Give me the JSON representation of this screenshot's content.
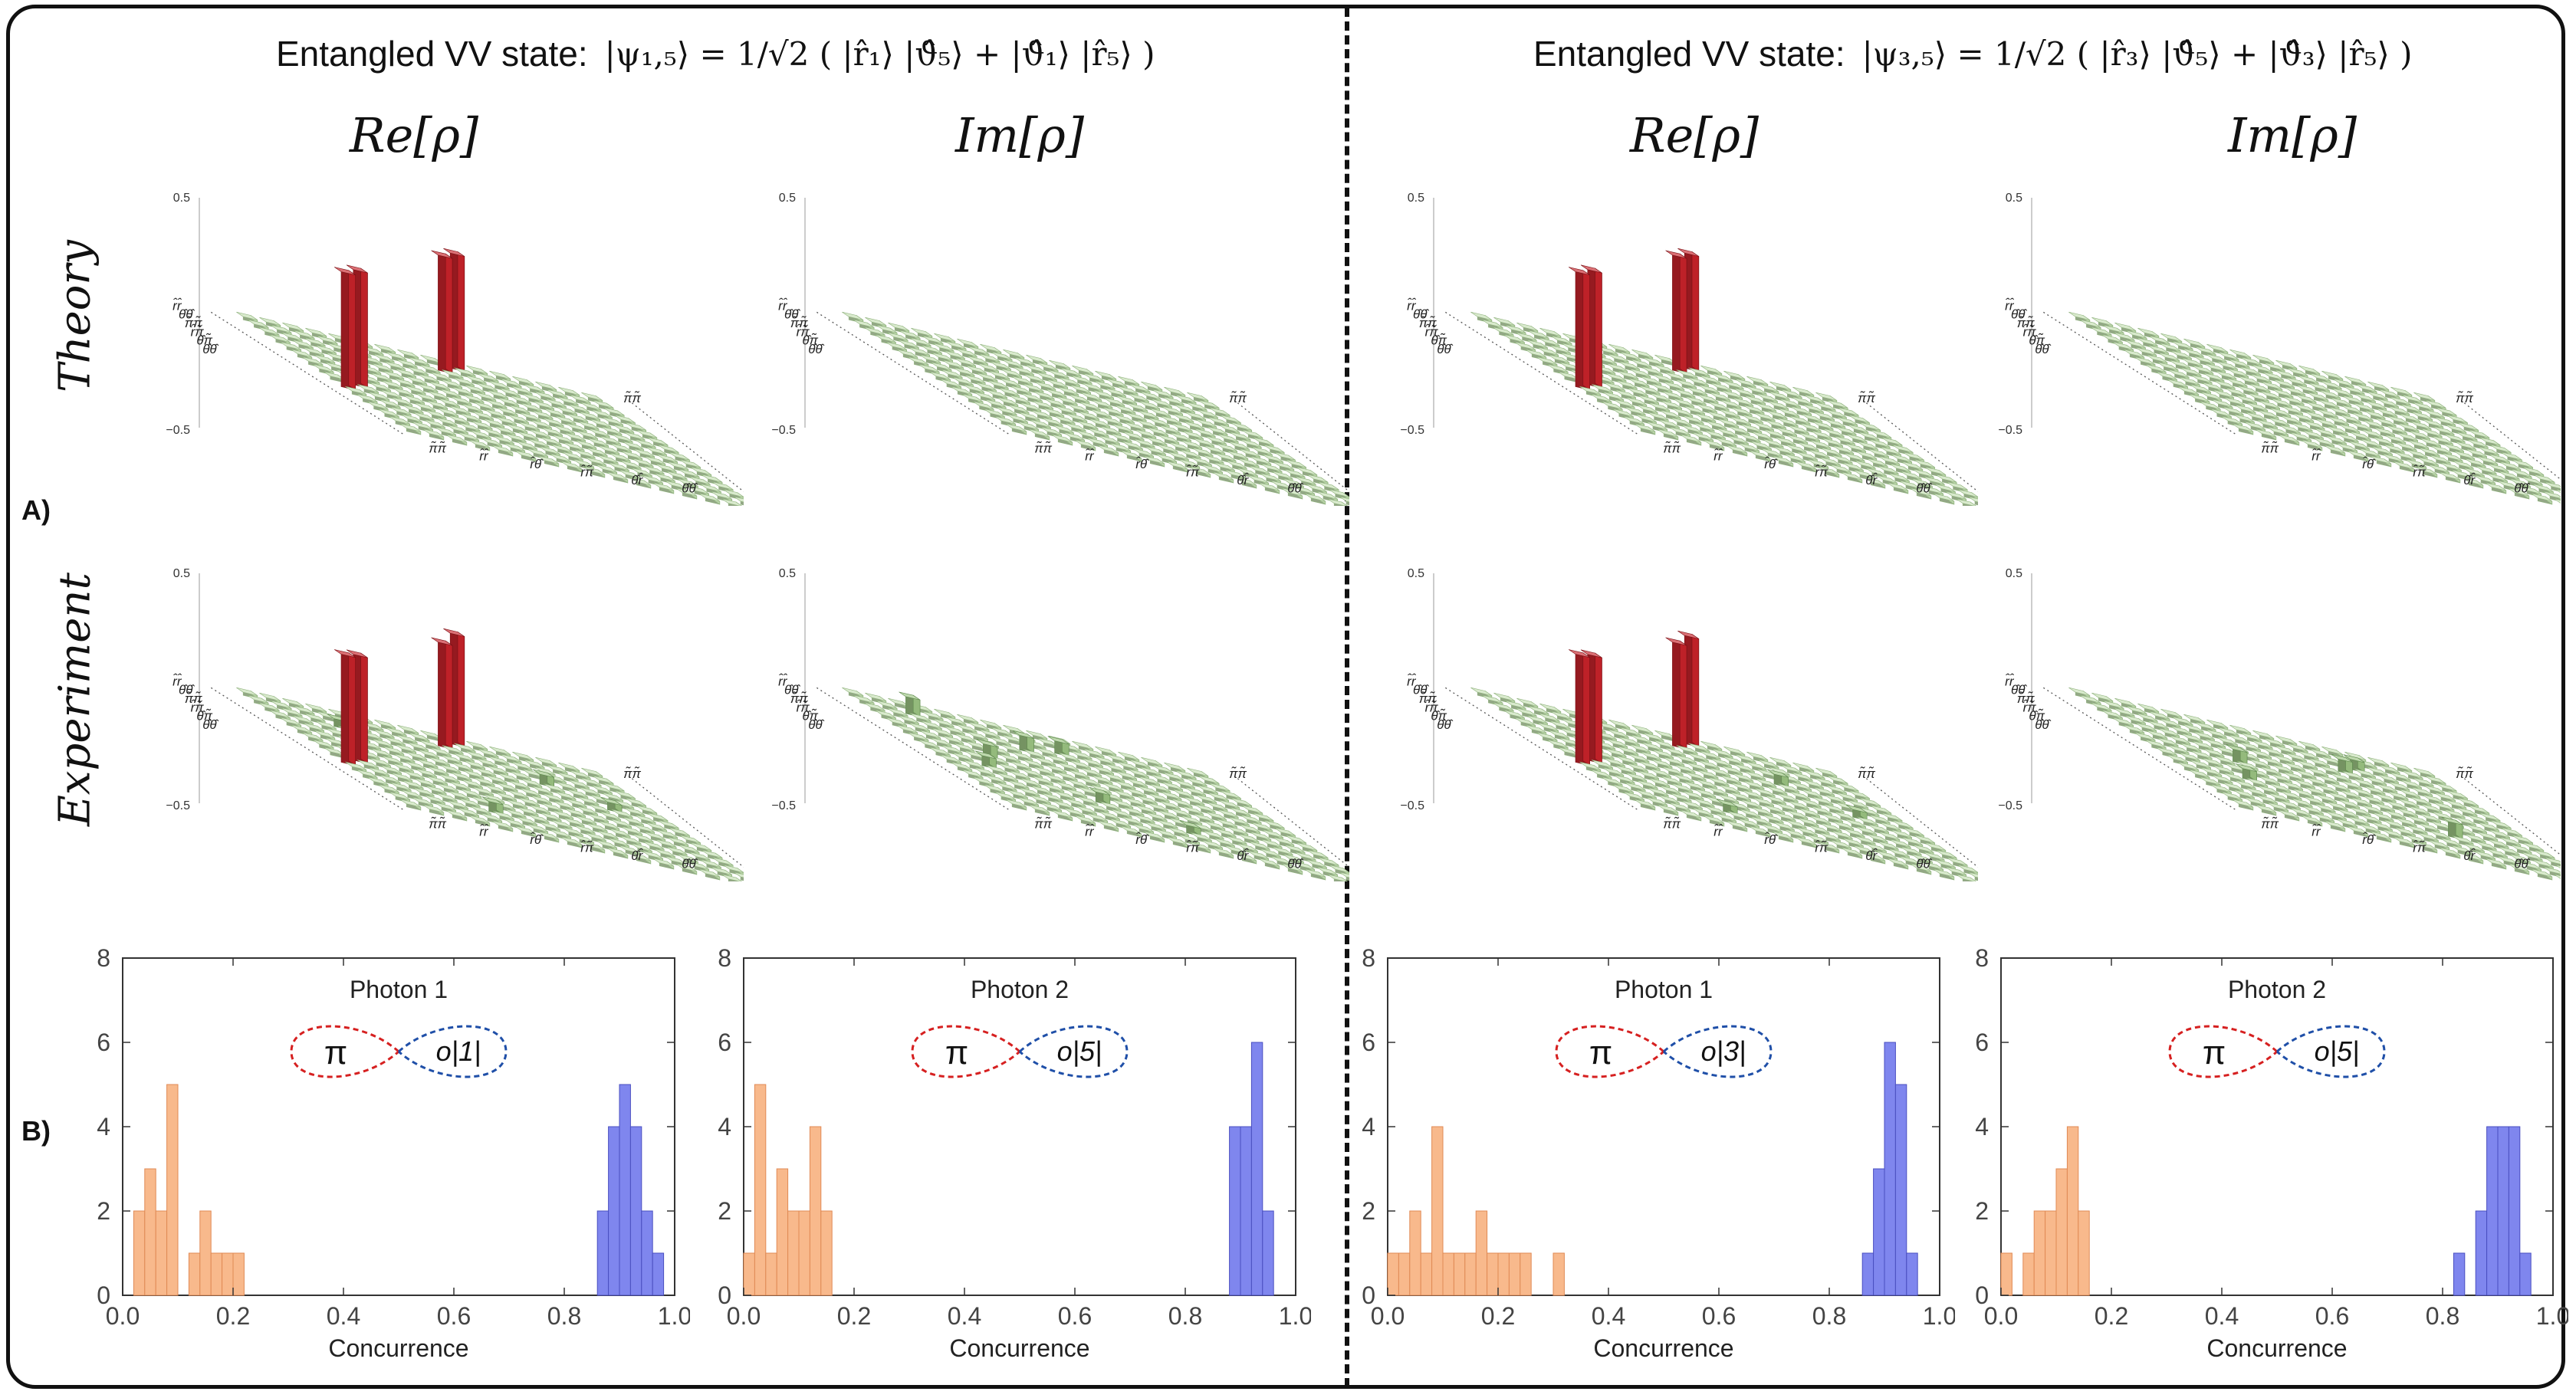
{
  "header": {
    "left_label": "Entangled VV state:",
    "left_equation": "|ψ₁,₅⟩ = 1/√2 ( |r̂₁⟩ |ϑ̂₅⟩ + |ϑ̂₁⟩ |r̂₅⟩ )",
    "right_label": "Entangled VV state:",
    "right_equation": "|ψ₃,₅⟩ = 1/√2 ( |r̂₃⟩ |ϑ̂₅⟩ + |ϑ̂₃⟩ |r̂₅⟩ )"
  },
  "columns": [
    "Re[ρ]",
    "Im[ρ]",
    "Re[ρ]",
    "Im[ρ]"
  ],
  "rows": [
    "Theory",
    "Experiment"
  ],
  "sections": {
    "a": "A)",
    "b": "B)"
  },
  "colors": {
    "tower": "#c8232a",
    "tile": "#c4dfb2",
    "tile_edge": "#8fb27d",
    "orange": "#f8b98c",
    "blue": "#7f86ee",
    "red_loop": "#d62020",
    "blue_loop": "#1f4fa8"
  },
  "chart_data": [
    {
      "type": "bar3d",
      "panel": "left-theory-re",
      "zmax_label": "0.5",
      "zmin_label": "−0.5",
      "grid": 16,
      "towers": [
        {
          "i": 0,
          "j": 9,
          "value": 0.5
        },
        {
          "i": 1,
          "j": 8,
          "value": 0.5
        },
        {
          "i": 8,
          "j": 1,
          "value": 0.5
        },
        {
          "i": 9,
          "j": 0,
          "value": 0.5
        }
      ],
      "axis_labels_left": [
        "r̂r̂",
        "θ̂θ̂",
        "π̃π̃",
        "r̂π̃",
        "θ̂π̃",
        "θ̂θ̂"
      ],
      "axis_labels_front": [
        "π̃π̃",
        "r̂r̂",
        "r̂θ̂",
        "r̂π̃",
        "θ̂r̂",
        "θ̂θ̂"
      ],
      "axis_labels_right": [
        "π̃π̃"
      ]
    },
    {
      "type": "bar3d",
      "panel": "left-theory-im",
      "zmax_label": "0.5",
      "zmin_label": "−0.5",
      "grid": 16,
      "towers": [],
      "axis_labels_left": [
        "r̂r̂",
        "θ̂θ̂",
        "π̃π̃",
        "r̂π̃",
        "θ̂π̃",
        "θ̂θ̂"
      ],
      "axis_labels_front": [
        "π̃π̃",
        "r̂r̂",
        "r̂θ̂",
        "r̂π̃",
        "θ̂r̂",
        "θ̂θ̂"
      ],
      "axis_labels_right": [
        "π̃π̃"
      ]
    },
    {
      "type": "bar3d",
      "panel": "right-theory-re",
      "zmax_label": "0.5",
      "zmin_label": "−0.5",
      "grid": 16,
      "towers": [
        {
          "i": 0,
          "j": 9,
          "value": 0.5
        },
        {
          "i": 1,
          "j": 8,
          "value": 0.5
        },
        {
          "i": 8,
          "j": 1,
          "value": 0.5
        },
        {
          "i": 9,
          "j": 0,
          "value": 0.5
        }
      ],
      "axis_labels_left": [
        "r̂r̂",
        "θ̂θ̂",
        "π̃π̃",
        "r̂π̃",
        "θ̂π̃",
        "θ̂θ̂"
      ],
      "axis_labels_front": [
        "π̃π̃",
        "r̂r̂",
        "r̂θ̂",
        "r̂π̃",
        "θ̂r̂",
        "θ̂θ̂"
      ],
      "axis_labels_right": [
        "π̃π̃"
      ]
    },
    {
      "type": "bar3d",
      "panel": "right-theory-im",
      "zmax_label": "0.5",
      "zmin_label": "−0.5",
      "grid": 16,
      "towers": [],
      "axis_labels_left": [
        "r̂r̂",
        "θ̂θ̂",
        "π̃π̃",
        "r̂π̃",
        "θ̂π̃",
        "θ̂θ̂"
      ],
      "axis_labels_front": [
        "π̃π̃",
        "r̂r̂",
        "r̂θ̂",
        "r̂π̃",
        "θ̂r̂",
        "θ̂θ̂"
      ],
      "axis_labels_right": [
        "π̃π̃"
      ]
    },
    {
      "type": "bar3d",
      "panel": "left-experiment-re",
      "zmax_label": "0.5",
      "zmin_label": "−0.5",
      "grid": 16,
      "towers": [
        {
          "i": 0,
          "j": 9,
          "value": 0.48
        },
        {
          "i": 1,
          "j": 8,
          "value": 0.45
        },
        {
          "i": 8,
          "j": 1,
          "value": 0.46
        },
        {
          "i": 9,
          "j": 0,
          "value": 0.47
        }
      ],
      "bumps": [
        {
          "i": 4,
          "j": 11,
          "value": 0.03
        },
        {
          "i": 12,
          "j": 5,
          "value": 0.03
        },
        {
          "i": 6,
          "j": 13,
          "value": 0.02
        },
        {
          "i": 2,
          "j": 3,
          "value": 0.02
        }
      ],
      "axis_labels_left": [
        "r̂r̂",
        "θ̂θ̂",
        "π̃π̃",
        "r̂π̃",
        "θ̂π̃",
        "θ̂θ̂"
      ],
      "axis_labels_front": [
        "π̃π̃",
        "r̂r̂",
        "r̂θ̂",
        "r̂π̃",
        "θ̂r̂",
        "θ̂θ̂"
      ],
      "axis_labels_right": [
        "π̃π̃"
      ]
    },
    {
      "type": "bar3d",
      "panel": "left-experiment-im",
      "zmax_label": "0.5",
      "zmin_label": "−0.5",
      "grid": 16,
      "towers": [],
      "bumps": [
        {
          "i": 1,
          "j": 2,
          "value": 0.06
        },
        {
          "i": 3,
          "j": 6,
          "value": 0.05
        },
        {
          "i": 6,
          "j": 3,
          "value": 0.04
        },
        {
          "i": 2,
          "j": 8,
          "value": 0.04
        },
        {
          "i": 8,
          "j": 2,
          "value": 0.03
        },
        {
          "i": 10,
          "j": 6,
          "value": 0.03
        },
        {
          "i": 12,
          "j": 9,
          "value": 0.02
        }
      ],
      "axis_labels_left": [
        "r̂r̂",
        "θ̂θ̂",
        "π̃π̃",
        "r̂π̃",
        "θ̂π̃",
        "θ̂θ̂"
      ],
      "axis_labels_front": [
        "π̃π̃",
        "r̂r̂",
        "r̂θ̂",
        "r̂π̃",
        "θ̂r̂",
        "θ̂θ̂"
      ],
      "axis_labels_right": [
        "π̃π̃"
      ]
    },
    {
      "type": "bar3d",
      "panel": "right-experiment-re",
      "zmax_label": "0.5",
      "zmin_label": "−0.5",
      "grid": 16,
      "towers": [
        {
          "i": 0,
          "j": 9,
          "value": 0.47
        },
        {
          "i": 1,
          "j": 8,
          "value": 0.45
        },
        {
          "i": 8,
          "j": 1,
          "value": 0.46
        },
        {
          "i": 9,
          "j": 0,
          "value": 0.47
        }
      ],
      "bumps": [
        {
          "i": 4,
          "j": 11,
          "value": 0.03
        },
        {
          "i": 12,
          "j": 5,
          "value": 0.02
        },
        {
          "i": 7,
          "j": 13,
          "value": 0.02
        }
      ],
      "axis_labels_left": [
        "r̂r̂",
        "θ̂θ̂",
        "π̃π̃",
        "r̂π̃",
        "θ̂π̃",
        "θ̂θ̂"
      ],
      "axis_labels_front": [
        "π̃π̃",
        "r̂r̂",
        "r̂θ̂",
        "r̂π̃",
        "θ̂r̂",
        "θ̂θ̂"
      ],
      "axis_labels_right": [
        "π̃π̃"
      ]
    },
    {
      "type": "bar3d",
      "panel": "right-experiment-im",
      "zmax_label": "0.5",
      "zmin_label": "−0.5",
      "grid": 16,
      "towers": [],
      "bumps": [
        {
          "i": 3,
          "j": 10,
          "value": 0.04
        },
        {
          "i": 2,
          "j": 11,
          "value": 0.03
        },
        {
          "i": 6,
          "j": 4,
          "value": 0.04
        },
        {
          "i": 11,
          "j": 11,
          "value": 0.05
        },
        {
          "i": 9,
          "j": 3,
          "value": 0.03
        }
      ],
      "axis_labels_left": [
        "r̂r̂",
        "θ̂θ̂",
        "π̃π̃",
        "r̂π̃",
        "θ̂π̃",
        "θ̂θ̂"
      ],
      "axis_labels_front": [
        "π̃π̃",
        "r̂r̂",
        "r̂θ̂",
        "r̂π̃",
        "θ̂r̂",
        "θ̂θ̂"
      ],
      "axis_labels_right": [
        "π̃π̃"
      ]
    },
    {
      "type": "bar",
      "panel": "hist-left-photon1",
      "title": "Photon 1",
      "xlabel": "Concurrence",
      "xlim": [
        0,
        1
      ],
      "ylim": [
        0,
        8
      ],
      "xticks": [
        "0.0",
        "0.2",
        "0.4",
        "0.6",
        "0.8",
        "1.0"
      ],
      "yticks": [
        "0",
        "2",
        "4",
        "6",
        "8"
      ],
      "bin_width": 0.02,
      "inset_left": "π",
      "inset_right": "o|1|",
      "series": [
        {
          "color": "orange",
          "bins": [
            {
              "x": 0.02,
              "value": 2
            },
            {
              "x": 0.04,
              "value": 3
            },
            {
              "x": 0.06,
              "value": 2
            },
            {
              "x": 0.08,
              "value": 5
            },
            {
              "x": 0.12,
              "value": 1
            },
            {
              "x": 0.14,
              "value": 2
            },
            {
              "x": 0.16,
              "value": 1
            },
            {
              "x": 0.18,
              "value": 1
            },
            {
              "x": 0.2,
              "value": 1
            }
          ]
        },
        {
          "color": "blue",
          "bins": [
            {
              "x": 0.86,
              "value": 2
            },
            {
              "x": 0.88,
              "value": 4
            },
            {
              "x": 0.9,
              "value": 5
            },
            {
              "x": 0.92,
              "value": 4
            },
            {
              "x": 0.94,
              "value": 2
            },
            {
              "x": 0.96,
              "value": 1
            }
          ]
        }
      ]
    },
    {
      "type": "bar",
      "panel": "hist-left-photon2",
      "title": "Photon 2",
      "xlabel": "Concurrence",
      "xlim": [
        0,
        1
      ],
      "ylim": [
        0,
        8
      ],
      "xticks": [
        "0.0",
        "0.2",
        "0.4",
        "0.6",
        "0.8",
        "1.0"
      ],
      "yticks": [
        "0",
        "2",
        "4",
        "6",
        "8"
      ],
      "bin_width": 0.02,
      "inset_left": "π",
      "inset_right": "o|5|",
      "series": [
        {
          "color": "orange",
          "bins": [
            {
              "x": 0.0,
              "value": 1
            },
            {
              "x": 0.02,
              "value": 5
            },
            {
              "x": 0.04,
              "value": 1
            },
            {
              "x": 0.06,
              "value": 3
            },
            {
              "x": 0.08,
              "value": 2
            },
            {
              "x": 0.1,
              "value": 2
            },
            {
              "x": 0.12,
              "value": 4
            },
            {
              "x": 0.14,
              "value": 2
            }
          ]
        },
        {
          "color": "blue",
          "bins": [
            {
              "x": 0.88,
              "value": 4
            },
            {
              "x": 0.9,
              "value": 4
            },
            {
              "x": 0.92,
              "value": 6
            },
            {
              "x": 0.94,
              "value": 2
            }
          ]
        }
      ]
    },
    {
      "type": "bar",
      "panel": "hist-right-photon1",
      "title": "Photon 1",
      "xlabel": "Concurrence",
      "xlim": [
        0,
        1
      ],
      "ylim": [
        0,
        8
      ],
      "xticks": [
        "0.0",
        "0.2",
        "0.4",
        "0.6",
        "0.8",
        "1.0"
      ],
      "yticks": [
        "0",
        "2",
        "4",
        "6",
        "8"
      ],
      "bin_width": 0.02,
      "inset_left": "π",
      "inset_right": "o|3|",
      "series": [
        {
          "color": "orange",
          "bins": [
            {
              "x": 0.0,
              "value": 1
            },
            {
              "x": 0.02,
              "value": 1
            },
            {
              "x": 0.04,
              "value": 2
            },
            {
              "x": 0.06,
              "value": 1
            },
            {
              "x": 0.08,
              "value": 4
            },
            {
              "x": 0.1,
              "value": 1
            },
            {
              "x": 0.12,
              "value": 1
            },
            {
              "x": 0.14,
              "value": 1
            },
            {
              "x": 0.16,
              "value": 2
            },
            {
              "x": 0.18,
              "value": 1
            },
            {
              "x": 0.2,
              "value": 1
            },
            {
              "x": 0.22,
              "value": 1
            },
            {
              "x": 0.24,
              "value": 1
            },
            {
              "x": 0.3,
              "value": 1
            }
          ]
        },
        {
          "color": "blue",
          "bins": [
            {
              "x": 0.86,
              "value": 1
            },
            {
              "x": 0.88,
              "value": 3
            },
            {
              "x": 0.9,
              "value": 6
            },
            {
              "x": 0.92,
              "value": 5
            },
            {
              "x": 0.94,
              "value": 1
            }
          ]
        }
      ]
    },
    {
      "type": "bar",
      "panel": "hist-right-photon2",
      "title": "Photon 2",
      "xlabel": "Concurrence",
      "xlim": [
        0,
        1
      ],
      "ylim": [
        0,
        8
      ],
      "xticks": [
        "0.0",
        "0.2",
        "0.4",
        "0.6",
        "0.8",
        "1.0"
      ],
      "yticks": [
        "0",
        "2",
        "4",
        "6",
        "8"
      ],
      "bin_width": 0.02,
      "inset_left": "π",
      "inset_right": "o|5|",
      "series": [
        {
          "color": "orange",
          "bins": [
            {
              "x": 0.0,
              "value": 1
            },
            {
              "x": 0.04,
              "value": 1
            },
            {
              "x": 0.06,
              "value": 2
            },
            {
              "x": 0.08,
              "value": 2
            },
            {
              "x": 0.1,
              "value": 3
            },
            {
              "x": 0.12,
              "value": 4
            },
            {
              "x": 0.14,
              "value": 2
            }
          ]
        },
        {
          "color": "blue",
          "bins": [
            {
              "x": 0.82,
              "value": 1
            },
            {
              "x": 0.86,
              "value": 2
            },
            {
              "x": 0.88,
              "value": 4
            },
            {
              "x": 0.9,
              "value": 4
            },
            {
              "x": 0.92,
              "value": 4
            },
            {
              "x": 0.94,
              "value": 1
            }
          ]
        }
      ]
    }
  ]
}
